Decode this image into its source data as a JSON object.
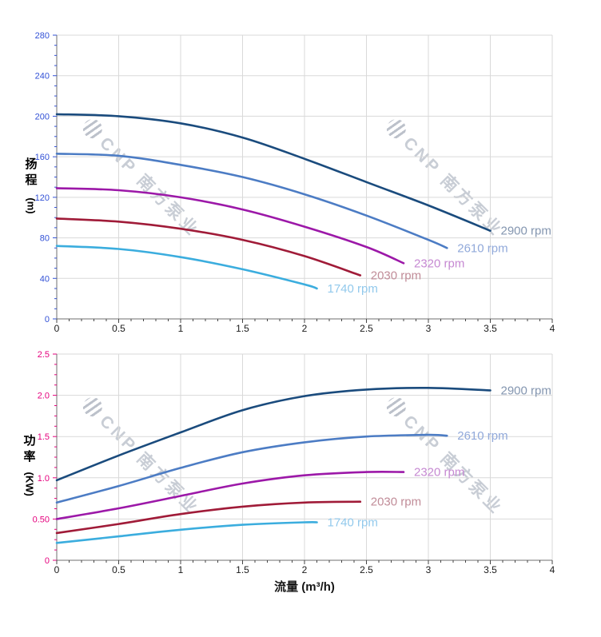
{
  "watermark": {
    "logo": "cnp-globe-logo",
    "text": "CNP 南方泵业"
  },
  "chart_data": [
    {
      "type": "line",
      "id": "head-curve-chart",
      "xlabel": "",
      "ylabel": "扬程 (m)",
      "ylabel_cn": "扬程",
      "ylabel_unit": "(m)",
      "accent_color": "#3251d6",
      "grid": true,
      "legend_position": "end-of-line",
      "xlim": [
        0,
        4
      ],
      "ylim": [
        0,
        280
      ],
      "x_major_step": 0.5,
      "x_minor_step": 0.1,
      "y_major_step": 40,
      "y_minor_step": 10,
      "x_tick_labels": [
        "0",
        "0.5",
        "1",
        "1.5",
        "2",
        "2.5",
        "3",
        "3.5",
        "4"
      ],
      "y_tick_labels": [
        "0",
        "40",
        "80",
        "120",
        "160",
        "200",
        "240",
        "280"
      ],
      "series": [
        {
          "name": "2900 rpm",
          "color": "#1a4b7d",
          "label_color": "#8496b0",
          "points": [
            [
              0,
              202
            ],
            [
              0.5,
              200
            ],
            [
              1,
              193
            ],
            [
              1.5,
              179
            ],
            [
              2,
              158
            ],
            [
              2.5,
              135
            ],
            [
              3,
              112
            ],
            [
              3.5,
              87
            ]
          ]
        },
        {
          "name": "2610 rpm",
          "color": "#4c7cc4",
          "label_color": "#91a9da",
          "points": [
            [
              0,
              163
            ],
            [
              0.5,
              161
            ],
            [
              1,
              152
            ],
            [
              1.5,
              140
            ],
            [
              2,
              123
            ],
            [
              2.5,
              102
            ],
            [
              3,
              78
            ],
            [
              3.15,
              70
            ]
          ]
        },
        {
          "name": "2320 rpm",
          "color": "#9c18a8",
          "label_color": "#c689d2",
          "points": [
            [
              0,
              129
            ],
            [
              0.5,
              127
            ],
            [
              1,
              120
            ],
            [
              1.5,
              108
            ],
            [
              2,
              91
            ],
            [
              2.5,
              71
            ],
            [
              2.8,
              55
            ]
          ]
        },
        {
          "name": "2030 rpm",
          "color": "#a01b38",
          "label_color": "#c18d99",
          "points": [
            [
              0,
              99
            ],
            [
              0.5,
              96
            ],
            [
              1,
              89
            ],
            [
              1.5,
              78
            ],
            [
              2,
              62
            ],
            [
              2.45,
              43
            ]
          ]
        },
        {
          "name": "1740 rpm",
          "color": "#3badde",
          "label_color": "#92c9ec",
          "points": [
            [
              0,
              72
            ],
            [
              0.5,
              69
            ],
            [
              1,
              61
            ],
            [
              1.5,
              49
            ],
            [
              2,
              34
            ],
            [
              2.1,
              30
            ]
          ]
        }
      ]
    },
    {
      "type": "line",
      "id": "power-curve-chart",
      "xlabel": "流量 (m³/h)",
      "ylabel": "功率 (KW)",
      "ylabel_cn": "功率",
      "ylabel_unit": "(KW)",
      "accent_color": "#e5007d",
      "grid": true,
      "legend_position": "end-of-line",
      "xlim": [
        0,
        4
      ],
      "ylim": [
        0,
        2.5
      ],
      "x_major_step": 0.5,
      "x_minor_step": 0.1,
      "y_major_step": 0.5,
      "y_minor_step": 0.125,
      "x_tick_labels": [
        "0",
        "0.5",
        "1",
        "1.5",
        "2",
        "2.5",
        "3",
        "3.5",
        "4"
      ],
      "y_tick_labels": [
        "0",
        "0.50",
        "1.0",
        "1.5",
        "2.0",
        "2.5"
      ],
      "series": [
        {
          "name": "2900 rpm",
          "color": "#1a4b7d",
          "label_color": "#8496b0",
          "points": [
            [
              0,
              0.97
            ],
            [
              0.5,
              1.27
            ],
            [
              1,
              1.55
            ],
            [
              1.5,
              1.82
            ],
            [
              2,
              1.99
            ],
            [
              2.5,
              2.07
            ],
            [
              3,
              2.09
            ],
            [
              3.5,
              2.06
            ]
          ]
        },
        {
          "name": "2610 rpm",
          "color": "#4c7cc4",
          "label_color": "#91a9da",
          "points": [
            [
              0,
              0.7
            ],
            [
              0.5,
              0.9
            ],
            [
              1,
              1.12
            ],
            [
              1.5,
              1.31
            ],
            [
              2,
              1.43
            ],
            [
              2.5,
              1.5
            ],
            [
              3,
              1.52
            ],
            [
              3.15,
              1.51
            ]
          ]
        },
        {
          "name": "2320 rpm",
          "color": "#9c18a8",
          "label_color": "#c689d2",
          "points": [
            [
              0,
              0.5
            ],
            [
              0.5,
              0.63
            ],
            [
              1,
              0.78
            ],
            [
              1.5,
              0.93
            ],
            [
              2,
              1.03
            ],
            [
              2.5,
              1.07
            ],
            [
              2.8,
              1.07
            ]
          ]
        },
        {
          "name": "2030 rpm",
          "color": "#a01b38",
          "label_color": "#c18d99",
          "points": [
            [
              0,
              0.33
            ],
            [
              0.5,
              0.44
            ],
            [
              1,
              0.56
            ],
            [
              1.5,
              0.65
            ],
            [
              2,
              0.7
            ],
            [
              2.45,
              0.71
            ]
          ]
        },
        {
          "name": "1740 rpm",
          "color": "#3badde",
          "label_color": "#92c9ec",
          "points": [
            [
              0,
              0.21
            ],
            [
              0.5,
              0.29
            ],
            [
              1,
              0.37
            ],
            [
              1.5,
              0.43
            ],
            [
              2,
              0.46
            ],
            [
              2.1,
              0.46
            ]
          ]
        }
      ]
    }
  ]
}
